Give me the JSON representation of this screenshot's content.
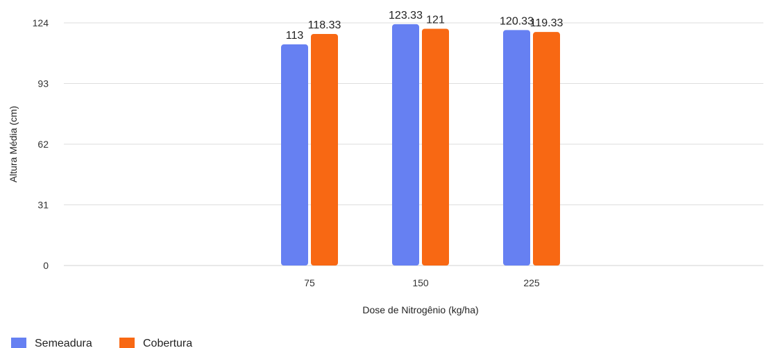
{
  "chart_data": {
    "type": "bar",
    "title": "",
    "xlabel": "Dose de Nitrogênio (kg/ha)",
    "ylabel": "Altura Média (cm)",
    "categories": [
      "75",
      "150",
      "225"
    ],
    "series": [
      {
        "name": "Semeadura",
        "values": [
          113,
          123.33,
          120.33
        ],
        "labels": [
          "113",
          "123.33",
          "120.33"
        ],
        "color": "#6680f2"
      },
      {
        "name": "Cobertura",
        "values": [
          118.33,
          121,
          119.33
        ],
        "labels": [
          "118.33",
          "121",
          "119.33"
        ],
        "color": "#f86813"
      }
    ],
    "ylim": [
      0,
      124
    ],
    "yticks": [
      0,
      31,
      62,
      93,
      124
    ],
    "ytick_labels": [
      "0",
      "31",
      "62",
      "93",
      "124"
    ],
    "grid": true,
    "legend_position": "bottom-left"
  }
}
